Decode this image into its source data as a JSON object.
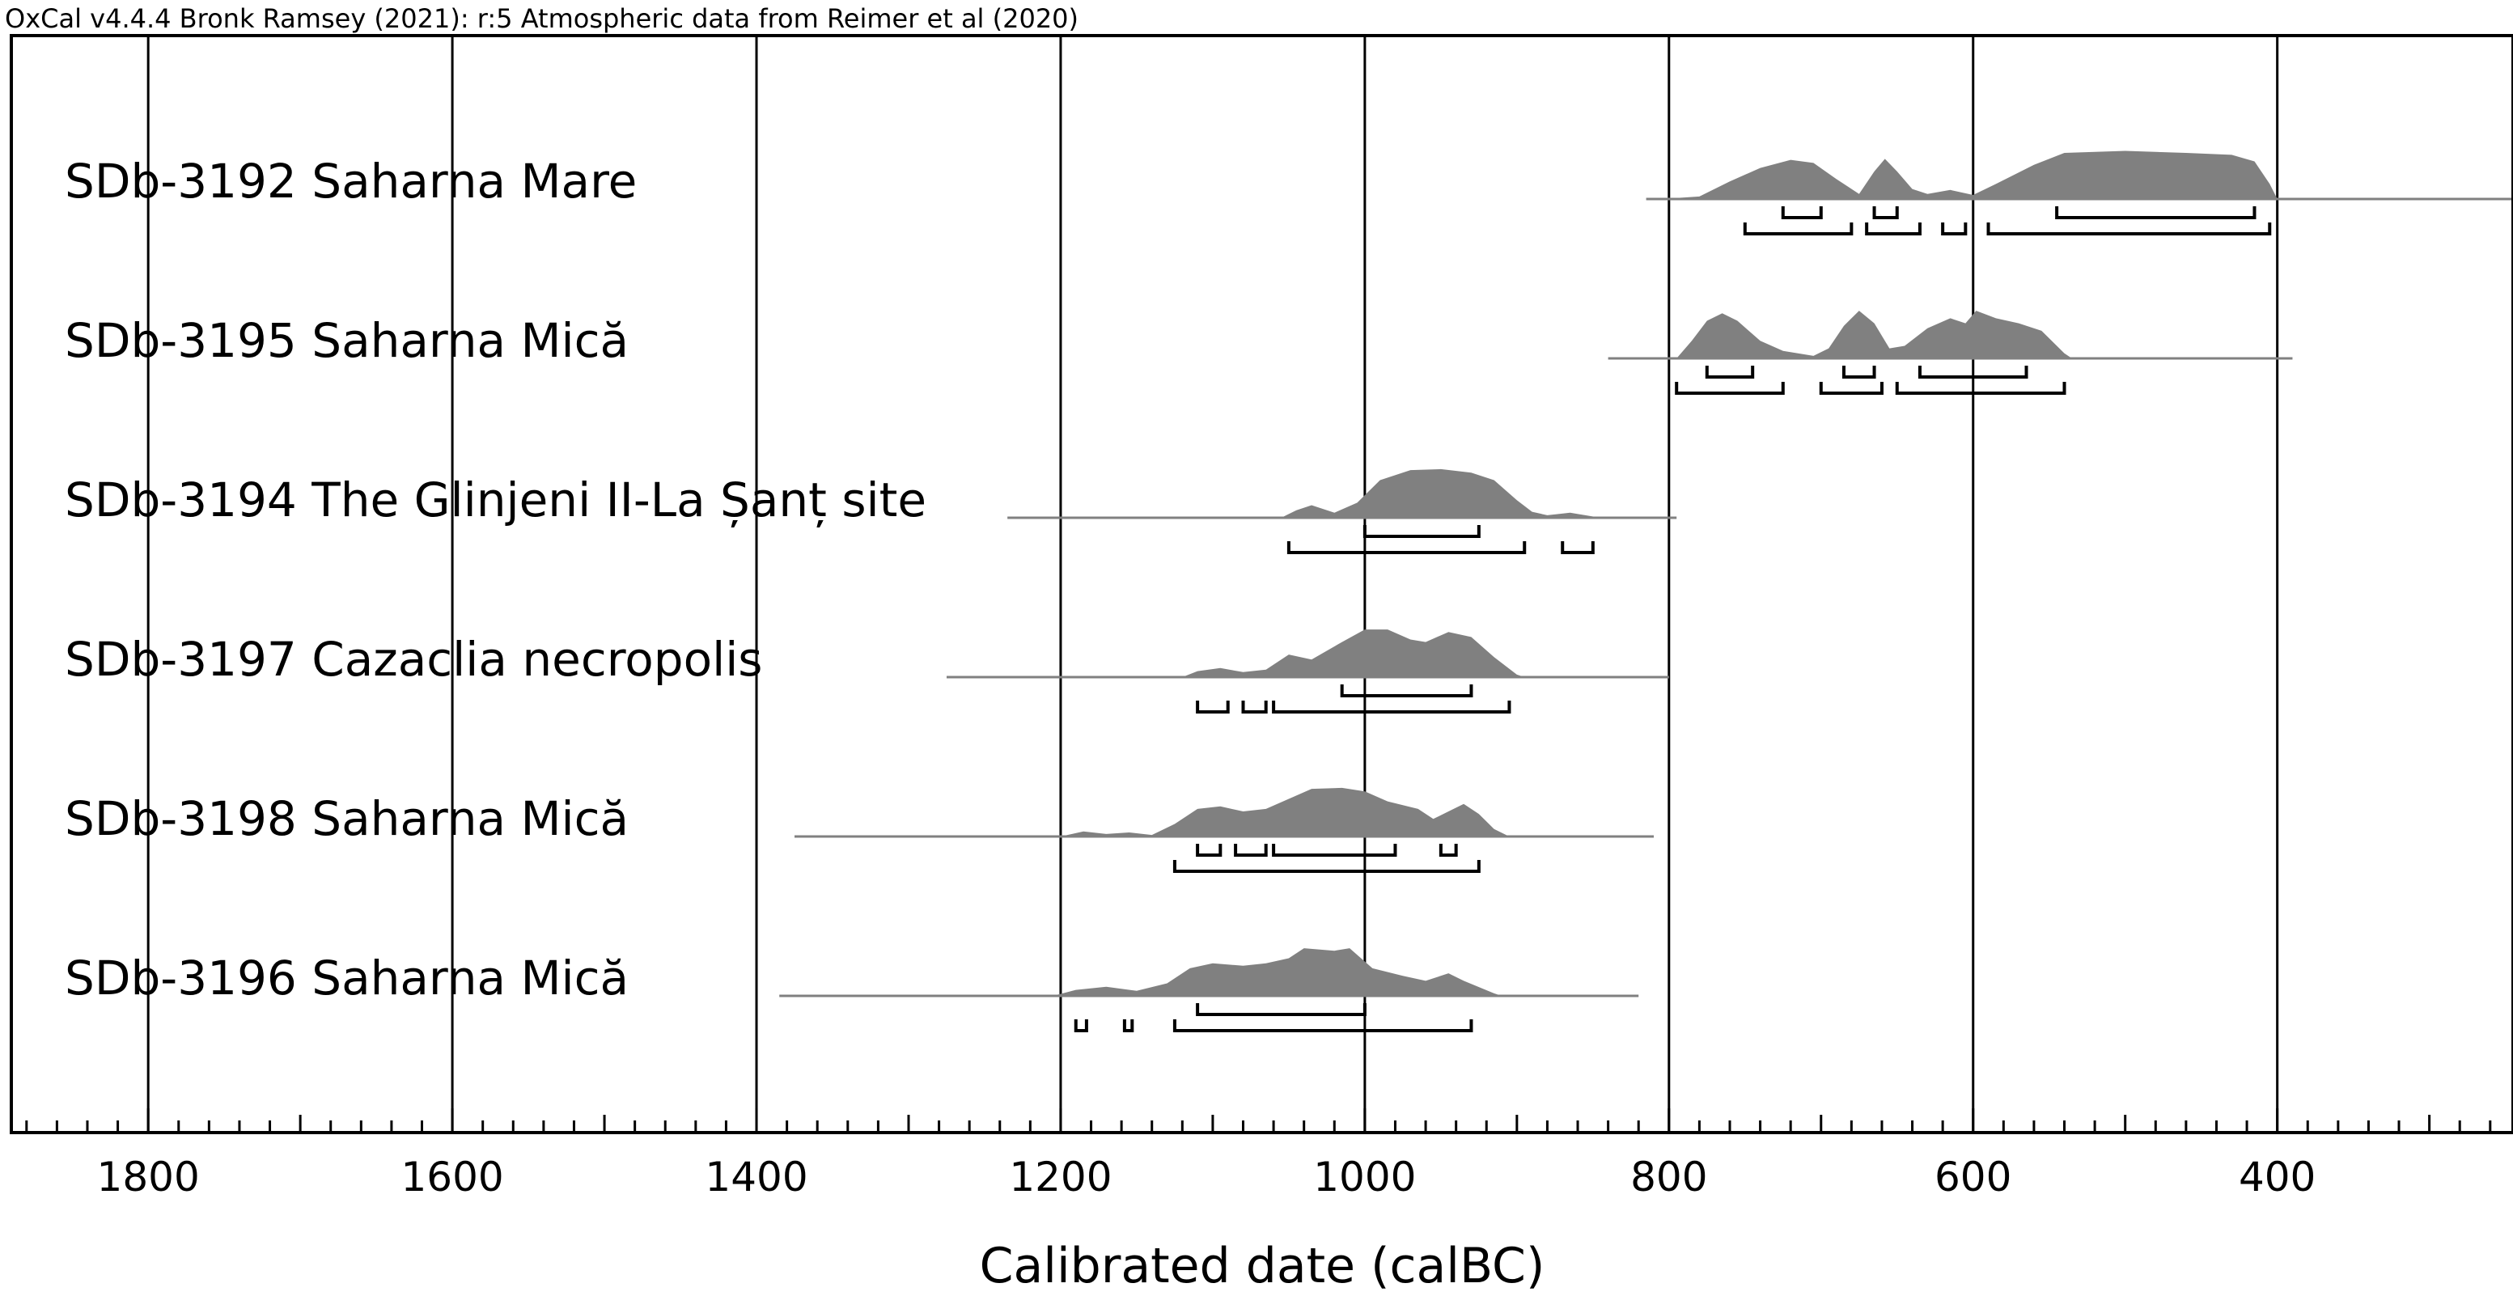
{
  "header": "OxCal v4.4.4 Bronk Ramsey (2021): r:5 Atmospheric data from Reimer et al (2020)",
  "chart_data": {
    "type": "calibration-multiplot",
    "xlabel": "Calibrated date (calBC)",
    "xlim": [
      1890,
      245
    ],
    "reversed": true,
    "x_ticks": [
      1800,
      1600,
      1400,
      1200,
      1000,
      800,
      600,
      400
    ],
    "minor_tick_step": 20,
    "grid": true,
    "fill_color": "#808080",
    "line_color": "#808080",
    "series": [
      {
        "label": "SDb-3192 Saharna Mare",
        "line": [
          815,
          245
        ],
        "density": [
          [
            805,
            0
          ],
          [
            780,
            0.05
          ],
          [
            760,
            0.35
          ],
          [
            740,
            0.62
          ],
          [
            720,
            0.78
          ],
          [
            705,
            0.72
          ],
          [
            690,
            0.4
          ],
          [
            675,
            0.1
          ],
          [
            665,
            0.55
          ],
          [
            658,
            0.8
          ],
          [
            650,
            0.55
          ],
          [
            640,
            0.2
          ],
          [
            630,
            0.1
          ],
          [
            615,
            0.18
          ],
          [
            600,
            0.08
          ],
          [
            585,
            0.3
          ],
          [
            560,
            0.68
          ],
          [
            540,
            0.92
          ],
          [
            500,
            0.96
          ],
          [
            460,
            0.92
          ],
          [
            430,
            0.88
          ],
          [
            415,
            0.75
          ],
          [
            405,
            0.3
          ],
          [
            400,
            0
          ]
        ],
        "hpd68": [
          [
            725,
            700
          ],
          [
            665,
            650
          ],
          [
            545,
            415
          ]
        ],
        "hpd95": [
          [
            750,
            680
          ],
          [
            670,
            635
          ],
          [
            620,
            605
          ],
          [
            590,
            405
          ]
        ]
      },
      {
        "label": "SDb-3195 Saharna Mică",
        "line": [
          840,
          390
        ],
        "density": [
          [
            795,
            0
          ],
          [
            785,
            0.35
          ],
          [
            775,
            0.75
          ],
          [
            765,
            0.9
          ],
          [
            755,
            0.75
          ],
          [
            740,
            0.35
          ],
          [
            725,
            0.15
          ],
          [
            705,
            0.05
          ],
          [
            695,
            0.2
          ],
          [
            685,
            0.65
          ],
          [
            675,
            0.95
          ],
          [
            665,
            0.7
          ],
          [
            655,
            0.2
          ],
          [
            645,
            0.25
          ],
          [
            630,
            0.6
          ],
          [
            615,
            0.8
          ],
          [
            605,
            0.7
          ],
          [
            598,
            0.95
          ],
          [
            585,
            0.8
          ],
          [
            570,
            0.7
          ],
          [
            555,
            0.55
          ],
          [
            540,
            0.1
          ],
          [
            535,
            0
          ]
        ],
        "hpd68": [
          [
            775,
            745
          ],
          [
            685,
            665
          ],
          [
            635,
            565
          ]
        ],
        "hpd95": [
          [
            795,
            725
          ],
          [
            700,
            660
          ],
          [
            650,
            540
          ]
        ]
      },
      {
        "label": "SDb-3194 The Glinjeni II-La Șanț site",
        "line": [
          1235,
          795
        ],
        "density": [
          [
            1055,
            0
          ],
          [
            1045,
            0.15
          ],
          [
            1035,
            0.25
          ],
          [
            1020,
            0.1
          ],
          [
            1005,
            0.3
          ],
          [
            990,
            0.75
          ],
          [
            970,
            0.95
          ],
          [
            950,
            0.97
          ],
          [
            930,
            0.9
          ],
          [
            915,
            0.75
          ],
          [
            900,
            0.35
          ],
          [
            890,
            0.12
          ],
          [
            880,
            0.05
          ],
          [
            865,
            0.1
          ],
          [
            855,
            0.05
          ],
          [
            845,
            0
          ]
        ],
        "hpd68": [
          [
            1000,
            925
          ]
        ],
        "hpd95": [
          [
            1050,
            895
          ],
          [
            870,
            850
          ]
        ]
      },
      {
        "label": "SDb-3197 Cazaclia necropolis",
        "line": [
          1275,
          800
        ],
        "density": [
          [
            1120,
            0
          ],
          [
            1110,
            0.12
          ],
          [
            1095,
            0.18
          ],
          [
            1080,
            0.1
          ],
          [
            1065,
            0.15
          ],
          [
            1050,
            0.45
          ],
          [
            1035,
            0.35
          ],
          [
            1015,
            0.7
          ],
          [
            1000,
            0.95
          ],
          [
            985,
            0.95
          ],
          [
            970,
            0.75
          ],
          [
            960,
            0.7
          ],
          [
            945,
            0.9
          ],
          [
            930,
            0.8
          ],
          [
            915,
            0.4
          ],
          [
            900,
            0.05
          ],
          [
            895,
            0
          ]
        ],
        "hpd68": [
          [
            1015,
            930
          ]
        ],
        "hpd95": [
          [
            1110,
            1090
          ],
          [
            1080,
            1065
          ],
          [
            1060,
            905
          ]
        ]
      },
      {
        "label": "SDb-3198 Saharna Mică",
        "line": [
          1375,
          810
        ],
        "density": [
          [
            1200,
            0
          ],
          [
            1185,
            0.1
          ],
          [
            1170,
            0.05
          ],
          [
            1155,
            0.08
          ],
          [
            1140,
            0.03
          ],
          [
            1125,
            0.25
          ],
          [
            1110,
            0.55
          ],
          [
            1095,
            0.6
          ],
          [
            1080,
            0.5
          ],
          [
            1065,
            0.55
          ],
          [
            1050,
            0.75
          ],
          [
            1035,
            0.95
          ],
          [
            1015,
            0.97
          ],
          [
            1000,
            0.9
          ],
          [
            985,
            0.7
          ],
          [
            965,
            0.55
          ],
          [
            955,
            0.35
          ],
          [
            945,
            0.5
          ],
          [
            935,
            0.65
          ],
          [
            925,
            0.45
          ],
          [
            915,
            0.15
          ],
          [
            905,
            0
          ]
        ],
        "hpd68": [
          [
            1110,
            1095
          ],
          [
            1085,
            1065
          ],
          [
            1060,
            980
          ],
          [
            950,
            940
          ]
        ],
        "hpd95": [
          [
            1125,
            925
          ]
        ]
      },
      {
        "label": "SDb-3196 Saharna Mică",
        "line": [
          1385,
          820
        ],
        "density": [
          [
            1205,
            0
          ],
          [
            1190,
            0.12
          ],
          [
            1170,
            0.18
          ],
          [
            1150,
            0.1
          ],
          [
            1130,
            0.25
          ],
          [
            1115,
            0.55
          ],
          [
            1100,
            0.65
          ],
          [
            1080,
            0.6
          ],
          [
            1065,
            0.65
          ],
          [
            1050,
            0.75
          ],
          [
            1040,
            0.95
          ],
          [
            1020,
            0.9
          ],
          [
            1010,
            0.95
          ],
          [
            995,
            0.55
          ],
          [
            975,
            0.4
          ],
          [
            960,
            0.3
          ],
          [
            945,
            0.45
          ],
          [
            935,
            0.3
          ],
          [
            915,
            0.05
          ],
          [
            910,
            0
          ]
        ],
        "hpd68": [
          [
            1110,
            1000
          ]
        ],
        "hpd95": [
          [
            1190,
            1183
          ],
          [
            1158,
            1153
          ],
          [
            1125,
            930
          ]
        ]
      }
    ]
  }
}
